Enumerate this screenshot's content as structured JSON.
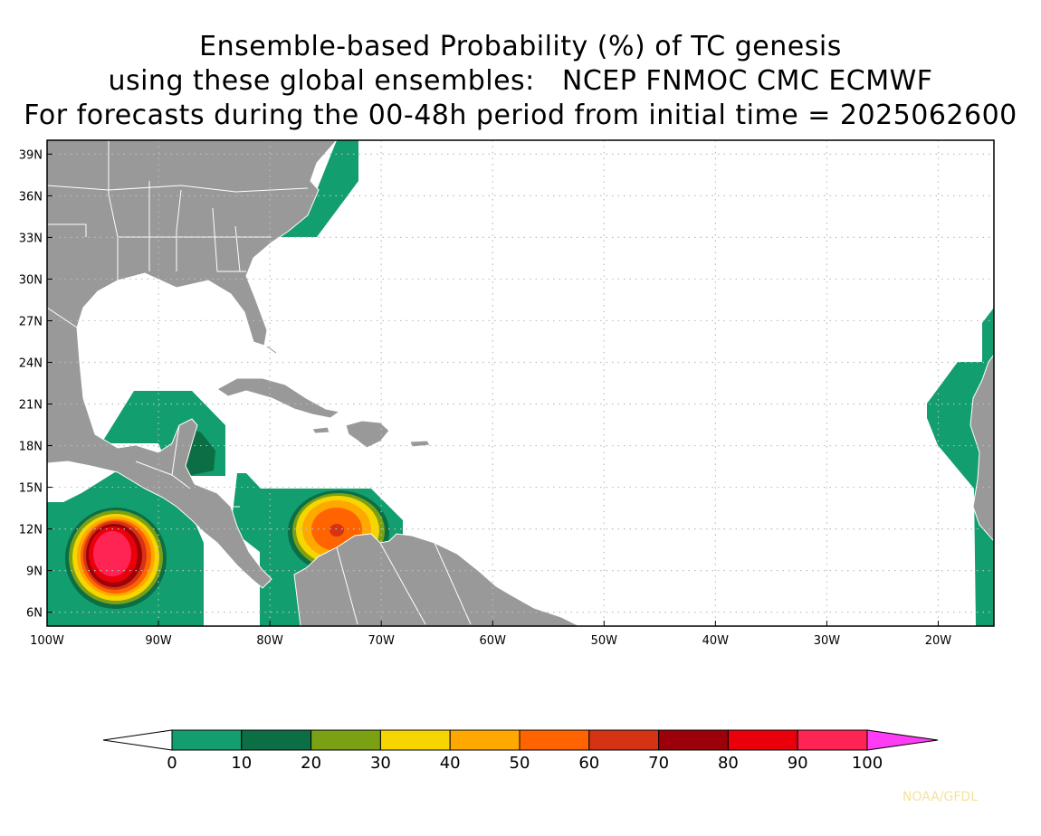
{
  "title": {
    "line1": "Ensemble-based Probability (%) of TC genesis",
    "line2": "using these global ensembles:   NCEP FNMOC CMC ECMWF",
    "line3": "For forecasts during the 00-48h period from initial time = 2025062600"
  },
  "map": {
    "projection": "cylindrical",
    "lon_range": [
      -100,
      -15
    ],
    "lat_range": [
      5,
      40
    ],
    "lat_labels": [
      {
        "lat": 39,
        "text": "39N"
      },
      {
        "lat": 36,
        "text": "36N"
      },
      {
        "lat": 33,
        "text": "33N"
      },
      {
        "lat": 30,
        "text": "30N"
      },
      {
        "lat": 27,
        "text": "27N"
      },
      {
        "lat": 24,
        "text": "24N"
      },
      {
        "lat": 21,
        "text": "21N"
      },
      {
        "lat": 18,
        "text": "18N"
      },
      {
        "lat": 15,
        "text": "15N"
      },
      {
        "lat": 12,
        "text": "12N"
      },
      {
        "lat": 9,
        "text": "9N"
      },
      {
        "lat": 6,
        "text": "6N"
      }
    ],
    "lon_labels": [
      {
        "lon": -100,
        "text": "100W"
      },
      {
        "lon": -90,
        "text": "90W"
      },
      {
        "lon": -80,
        "text": "80W"
      },
      {
        "lon": -70,
        "text": "70W"
      },
      {
        "lon": -60,
        "text": "60W"
      },
      {
        "lon": -50,
        "text": "50W"
      },
      {
        "lon": -40,
        "text": "40W"
      },
      {
        "lon": -30,
        "text": "30W"
      },
      {
        "lon": -20,
        "text": "20W"
      }
    ],
    "grid": "dotted",
    "land_color": "#999999",
    "ocean_color": "#ffffff"
  },
  "colorbar": {
    "labels": [
      "0",
      "10",
      "20",
      "30",
      "40",
      "50",
      "60",
      "70",
      "80",
      "90",
      "100"
    ],
    "colors": [
      "#129e6e",
      "#0b6e45",
      "#7aa013",
      "#f5d600",
      "#ffa800",
      "#ff6400",
      "#d43414",
      "#9c0008",
      "#e9000b",
      "#ff2454"
    ],
    "under_color": "#ffffff",
    "over_color": "#ff3cf5"
  },
  "credit": "NOAA/GFDL"
}
